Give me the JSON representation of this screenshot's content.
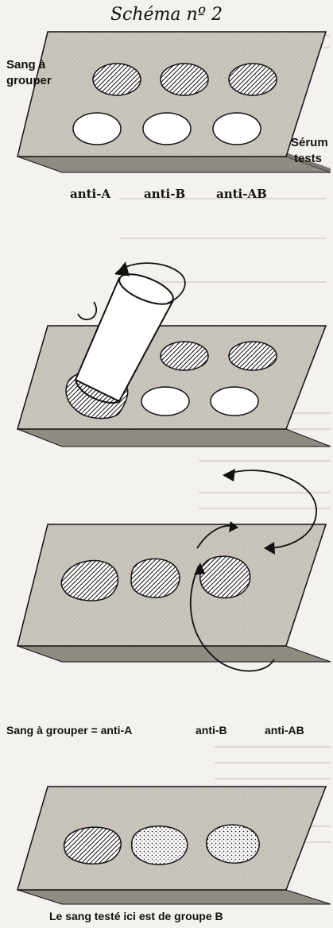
{
  "title": "Schéma nº 2",
  "step1": {
    "blood_label_line1": "Sang à",
    "blood_label_line2": "grouper",
    "serum_label_line1": "Sérum",
    "serum_label_line2": "tests",
    "col_anti_a": "anti-A",
    "col_anti_b": "anti-B",
    "col_anti_ab": "anti-AB"
  },
  "step3": {
    "caption_left": "Sang à grouper = anti-A",
    "caption_mid": "anti-B",
    "caption_right": "anti-AB"
  },
  "step4": {
    "caption": "Le sang testé ici est de groupe B"
  },
  "colors": {
    "background": "#f4f2ee",
    "plate_top": "#c9c5bd",
    "plate_side": "#8f8a82",
    "ink": "#111111",
    "bleed_text": "#b9b4ab"
  }
}
